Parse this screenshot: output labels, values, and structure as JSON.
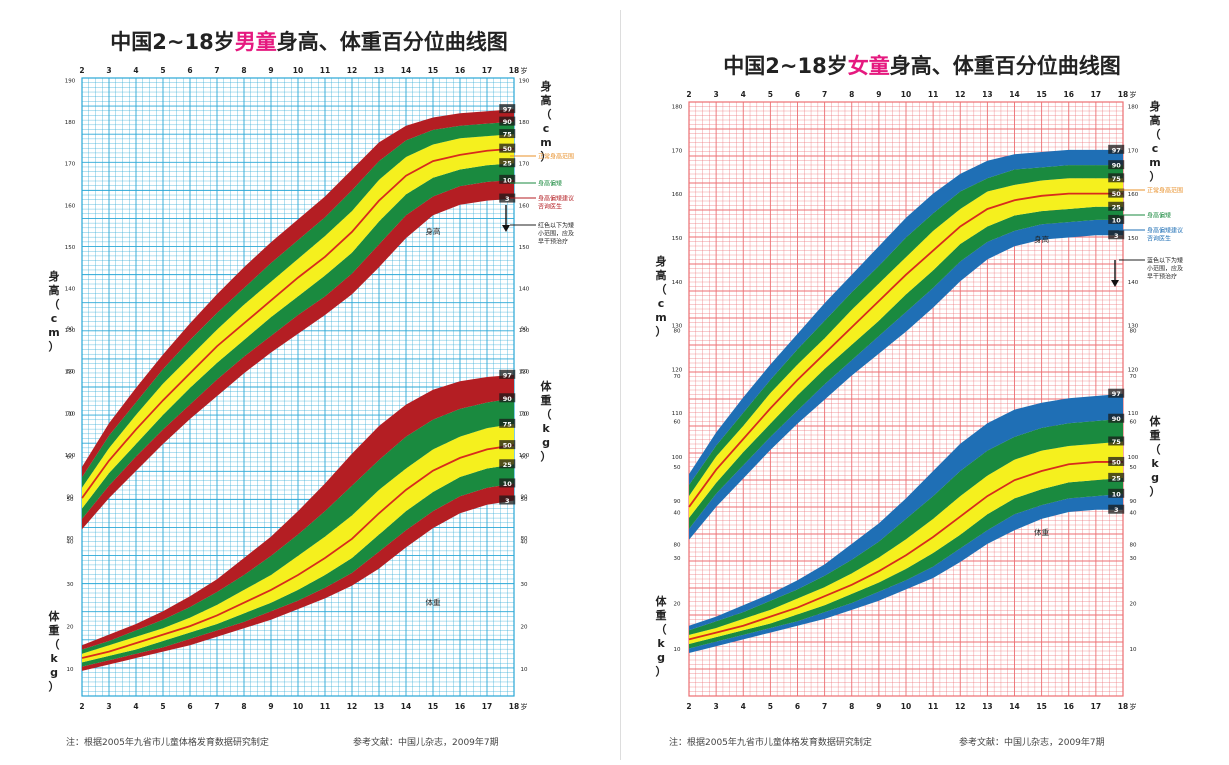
{
  "boys": {
    "title_prefix": "中国2~18岁",
    "title_highlight": "男童",
    "title_suffix": "身高、体重百分位曲线图",
    "footnote": "注：根据2005年九省市儿童体格发育数据研究制定",
    "reference": "参考文献：中国儿杂志，2009年7期",
    "theme": {
      "grid": "#2aa7d6",
      "outer": "#b41e23",
      "mid": "#1a8a3f",
      "inner": "#f5f01e",
      "median": "#d82c1c"
    }
  },
  "girls": {
    "title_prefix": "中国2~18岁",
    "title_highlight": "女童",
    "title_suffix": "身高、体重百分位曲线图",
    "footnote": "注：根据2005年九省市儿童体格发育数据研究制定",
    "reference": "参考文献：中国儿杂志，2009年7期",
    "theme": {
      "grid": "#ec6e72",
      "outer": "#1f6fb5",
      "mid": "#1a8a3f",
      "inner": "#f5f01e",
      "median": "#d82c1c"
    }
  },
  "labels": {
    "age_unit": "岁",
    "height_axis": "身高（cm）",
    "weight_axis": "体重（kg）",
    "height_curve": "身高",
    "weight_curve": "体重"
  },
  "chart_data": [
    {
      "type": "line",
      "title": "中国2~18岁男童身高、体重百分位曲线图",
      "xlabel": "岁",
      "x": [
        2,
        3,
        4,
        5,
        6,
        7,
        8,
        9,
        10,
        11,
        12,
        13,
        14,
        15,
        16,
        17,
        18
      ],
      "xlim": [
        2,
        18
      ],
      "height_ylim": [
        65,
        190
      ],
      "height_ticks": [
        80,
        90,
        100,
        110,
        120,
        130,
        140,
        150,
        160,
        170,
        180,
        190
      ],
      "weight_ylim": [
        5,
        90
      ],
      "weight_ticks": [
        10,
        20,
        30,
        40,
        50,
        60,
        70,
        80,
        90
      ],
      "percentile_labels": [
        "3",
        "10",
        "25",
        "50",
        "75",
        "90",
        "97"
      ],
      "legend": [
        {
          "color": "#e8902a",
          "text": "正常身高范围"
        },
        {
          "color": "#1a8a3f",
          "text": "身高偏矮"
        },
        {
          "color": "#b41e23",
          "text": "身高偏矮建议咨询医生"
        },
        {
          "color": "#222222",
          "text": "红色以下为矮小范围，应及早干预治疗"
        }
      ],
      "height_series": [
        {
          "name": "3",
          "values": [
            82,
            89.5,
            96,
            102.5,
            108.5,
            114,
            119.5,
            124.5,
            129,
            133.5,
            138.5,
            145,
            152,
            157.5,
            160,
            161,
            161.5
          ]
        },
        {
          "name": "10",
          "values": [
            84.5,
            92.5,
            99.5,
            106,
            112,
            118,
            123.5,
            128.5,
            133.5,
            138,
            143.5,
            150.5,
            157.5,
            162,
            164.5,
            165.5,
            166
          ]
        },
        {
          "name": "25",
          "values": [
            87,
            95.5,
            102.5,
            109.5,
            116,
            122,
            127.5,
            133,
            138,
            143,
            148.5,
            156,
            162.5,
            166.5,
            168.5,
            169.5,
            170
          ]
        },
        {
          "name": "50",
          "values": [
            89.5,
            98.5,
            106,
            113,
            119.5,
            126,
            131.5,
            137,
            142.5,
            147.5,
            153.5,
            161,
            167,
            170.5,
            172,
            173,
            173.5
          ]
        },
        {
          "name": "75",
          "values": [
            92,
            101.5,
            109.5,
            117,
            123.5,
            130,
            136,
            141.5,
            147,
            152.5,
            158.5,
            166,
            171.5,
            174.5,
            176,
            176.5,
            177
          ]
        },
        {
          "name": "90",
          "values": [
            94.5,
            104.5,
            112.5,
            120.5,
            127.5,
            134,
            140,
            146,
            151.5,
            157,
            163.5,
            170.5,
            175.5,
            178,
            179,
            179.5,
            180
          ]
        },
        {
          "name": "97",
          "values": [
            97,
            107.5,
            116,
            124,
            131.5,
            138.5,
            145,
            151,
            156.5,
            162,
            168.5,
            175,
            179,
            181,
            182,
            182.5,
            183
          ]
        }
      ],
      "weight_series": [
        {
          "name": "3",
          "values": [
            9.5,
            11,
            12.5,
            14,
            15.5,
            17.5,
            19.5,
            21.5,
            24,
            26.5,
            29.5,
            33.5,
            38.5,
            43,
            46.5,
            48.5,
            49.5
          ]
        },
        {
          "name": "10",
          "values": [
            10.5,
            12,
            13.5,
            15,
            17,
            19,
            21,
            23.5,
            26,
            29,
            32.5,
            37.5,
            42.5,
            47,
            50.5,
            52.5,
            53.5
          ]
        },
        {
          "name": "25",
          "values": [
            11.5,
            13,
            14.5,
            16.5,
            18.5,
            20.5,
            23,
            25.5,
            28.5,
            32,
            36,
            41.5,
            47,
            51.5,
            55,
            57,
            58
          ]
        },
        {
          "name": "50",
          "values": [
            12.5,
            14,
            16,
            18,
            20,
            22.5,
            25.5,
            28.5,
            32,
            36,
            40.5,
            46.5,
            52,
            56.5,
            59.5,
            61.5,
            62.5
          ]
        },
        {
          "name": "75",
          "values": [
            13.5,
            15.5,
            17.5,
            19.5,
            22,
            25,
            28.5,
            32,
            36.5,
            41,
            46,
            52,
            57,
            61.5,
            64.5,
            66.5,
            67.5
          ]
        },
        {
          "name": "90",
          "values": [
            14.5,
            16.5,
            19,
            21.5,
            24.5,
            28,
            32,
            36.5,
            41.5,
            47,
            53,
            59,
            64.5,
            68.5,
            71,
            72.5,
            73.5
          ]
        },
        {
          "name": "97",
          "values": [
            15.5,
            18,
            20.5,
            23.5,
            27,
            31,
            36,
            41,
            47,
            53.5,
            60.5,
            67,
            72,
            75.5,
            77.5,
            78.5,
            79
          ]
        }
      ]
    },
    {
      "type": "line",
      "title": "中国2~18岁女童身高、体重百分位曲线图",
      "xlabel": "岁",
      "x": [
        2,
        3,
        4,
        5,
        6,
        7,
        8,
        9,
        10,
        11,
        12,
        13,
        14,
        15,
        16,
        17,
        18
      ],
      "xlim": [
        2,
        18
      ],
      "height_ylim": [
        70,
        180
      ],
      "height_ticks": [
        80,
        90,
        100,
        110,
        120,
        130,
        140,
        150,
        160,
        170,
        180
      ],
      "weight_ylim": [
        0,
        80
      ],
      "weight_ticks": [
        10,
        20,
        30,
        40,
        50,
        60,
        70,
        80
      ],
      "percentile_labels": [
        "3",
        "10",
        "25",
        "50",
        "75",
        "90",
        "97"
      ],
      "legend": [
        {
          "color": "#e8902a",
          "text": "正常身高范围"
        },
        {
          "color": "#1a8a3f",
          "text": "身高偏矮"
        },
        {
          "color": "#1f6fb5",
          "text": "身高偏矮建议咨询医生"
        },
        {
          "color": "#222222",
          "text": "蓝色以下为矮小范围，应及早干预治疗"
        }
      ],
      "height_series": [
        {
          "name": "3",
          "values": [
            81,
            88.5,
            95,
            101.5,
            107.5,
            113,
            118.5,
            123.5,
            128.5,
            134,
            140,
            145,
            148,
            149.5,
            150,
            150.5,
            150.5
          ]
        },
        {
          "name": "10",
          "values": [
            83.5,
            91.5,
            98,
            104.5,
            110.5,
            116.5,
            122,
            127.5,
            133,
            138.5,
            144.5,
            149,
            151.5,
            153,
            153.5,
            154,
            154
          ]
        },
        {
          "name": "25",
          "values": [
            86,
            94,
            101,
            107.5,
            114,
            120,
            125.5,
            131,
            137,
            142.5,
            148.5,
            152.5,
            155,
            156,
            156.5,
            157,
            157
          ]
        },
        {
          "name": "50",
          "values": [
            88.5,
            97,
            104,
            111,
            117.5,
            123.5,
            129.5,
            135.5,
            141.5,
            147,
            152.5,
            156.5,
            158.5,
            159.5,
            160,
            160,
            160
          ]
        },
        {
          "name": "75",
          "values": [
            91,
            100,
            107,
            114.5,
            121,
            127,
            133.5,
            139.5,
            145.5,
            151.5,
            156.5,
            160.5,
            162,
            163,
            163.5,
            163.5,
            163.5
          ]
        },
        {
          "name": "90",
          "values": [
            93.5,
            102.5,
            110,
            117.5,
            124.5,
            131,
            137.5,
            143.5,
            150,
            155.5,
            160.5,
            163.5,
            165.5,
            166,
            166.5,
            166.5,
            166.5
          ]
        },
        {
          "name": "97",
          "values": [
            96,
            105.5,
            113.5,
            121,
            128,
            135,
            141.5,
            148,
            154.5,
            160,
            164.5,
            167.5,
            169,
            169.5,
            170,
            170,
            170
          ]
        }
      ],
      "weight_series": [
        {
          "name": "3",
          "values": [
            9,
            10.5,
            12,
            13.5,
            15,
            16.5,
            18.5,
            20.5,
            23,
            25.5,
            29,
            33,
            36,
            38.5,
            40,
            40.5,
            40.5
          ]
        },
        {
          "name": "10",
          "values": [
            10,
            11.5,
            13,
            14.5,
            16,
            18,
            20,
            22.5,
            25,
            28,
            32,
            36,
            39.5,
            41.5,
            43,
            43.5,
            44
          ]
        },
        {
          "name": "25",
          "values": [
            11,
            12.5,
            14,
            15.5,
            17.5,
            19.5,
            22,
            24.5,
            27.5,
            31,
            35,
            39.5,
            43,
            45,
            46.5,
            47,
            47.5
          ]
        },
        {
          "name": "50",
          "values": [
            12,
            13.5,
            15,
            17,
            19,
            21.5,
            24,
            27,
            30.5,
            34.5,
            39,
            43.5,
            47,
            49,
            50.5,
            51,
            51
          ]
        },
        {
          "name": "75",
          "values": [
            13,
            14.5,
            16.5,
            18.5,
            21,
            23.5,
            26.5,
            30,
            34,
            38.5,
            43.5,
            48,
            51.5,
            53.5,
            54.5,
            55,
            55.5
          ]
        },
        {
          "name": "90",
          "values": [
            14,
            16,
            18,
            20.5,
            23,
            26,
            29.5,
            33.5,
            38.5,
            43.5,
            49,
            53.5,
            56.5,
            58.5,
            59.5,
            60,
            60.5
          ]
        },
        {
          "name": "97",
          "values": [
            15,
            17,
            19.5,
            22,
            25,
            28.5,
            33,
            37.5,
            43,
            49,
            55,
            59.5,
            62.5,
            64,
            65,
            65.5,
            66
          ]
        }
      ]
    }
  ]
}
